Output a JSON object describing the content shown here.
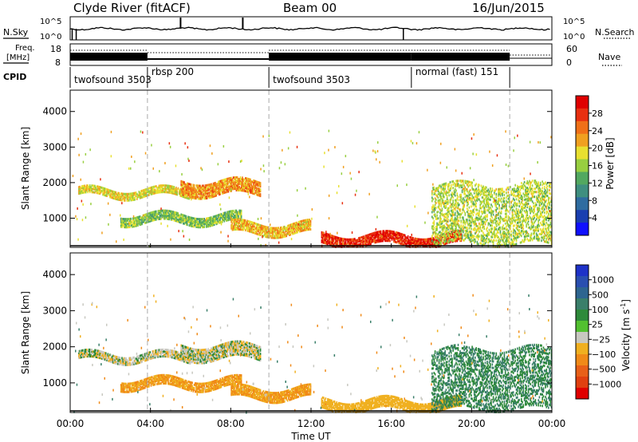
{
  "header": {
    "station": "Clyde River (fitACF)",
    "beam": "Beam 00",
    "date": "16/Jun/2015"
  },
  "status_panel": {
    "nsky_label": "N.Sky",
    "nsearch_label": "N.Search",
    "noise_ticks": [
      "10^5",
      "10^0"
    ],
    "noise_ticks_right": [
      "10^5",
      "10^0"
    ],
    "freq_label_line1": "Freq.",
    "freq_label_line2": "[MHz]",
    "freq_ticks": [
      "18",
      "8"
    ],
    "nave_label": "Nave",
    "nave_ticks": [
      "60",
      "0"
    ],
    "cpid_label": "CPID",
    "cpid_segments": [
      {
        "name": "twofsound 3503",
        "start_hour": 0.0,
        "end_hour": 3.85
      },
      {
        "name": "rbsp 200",
        "start_hour": 3.85,
        "end_hour": 9.9
      },
      {
        "name": "twofsound 3503",
        "start_hour": 9.9,
        "end_hour": 17.0
      },
      {
        "name": "normal (fast) 151",
        "start_hour": 17.0,
        "end_hour": 21.9
      }
    ]
  },
  "chart_data": [
    {
      "type": "heatmap",
      "parameter": "Power",
      "ylabel": "Slant Range [km]",
      "xlabel": "",
      "xlim_hours": [
        0,
        24
      ],
      "ylim": [
        180,
        4600
      ],
      "yticks": [
        1000,
        2000,
        3000,
        4000
      ],
      "colorbar": {
        "label": "Power [dB]",
        "ticks": [
          "28",
          "24",
          "20",
          "16",
          "12",
          "8",
          "4"
        ],
        "range": [
          0,
          30
        ]
      },
      "features": [
        {
          "desc": "band",
          "hours": [
            0.4,
            6.0
          ],
          "range_km": [
            1650,
            1850
          ],
          "value": 18
        },
        {
          "desc": "band",
          "hours": [
            5.5,
            9.5
          ],
          "range_km": [
            1700,
            2100
          ],
          "value": 22
        },
        {
          "desc": "band",
          "hours": [
            2.5,
            8.5
          ],
          "range_km": [
            900,
            1150
          ],
          "value": 14
        },
        {
          "desc": "band",
          "hours": [
            8.0,
            12.0
          ],
          "range_km": [
            600,
            900
          ],
          "value": 20
        },
        {
          "desc": "near-range",
          "hours": [
            12.5,
            19.5
          ],
          "range_km": [
            280,
            560
          ],
          "value": 28
        },
        {
          "desc": "scattered",
          "hours": [
            18.0,
            24.0
          ],
          "range_km": [
            300,
            2000
          ],
          "value": 16
        }
      ]
    },
    {
      "type": "heatmap",
      "parameter": "Velocity",
      "ylabel": "Slant Range [km]",
      "xlabel": "Time UT",
      "xlim_hours": [
        0,
        24
      ],
      "ylim": [
        180,
        4600
      ],
      "yticks": [
        1000,
        2000,
        3000,
        4000
      ],
      "xticks": [
        "00:00",
        "04:00",
        "08:00",
        "12:00",
        "16:00",
        "20:00",
        "00:00"
      ],
      "colorbar": {
        "label": "Velocity [m s",
        "label_superscript": "-1",
        "label_close": "]",
        "ticks": [
          "1000",
          "500",
          "100",
          "25",
          "−25",
          "−100",
          "−500",
          "−1000"
        ]
      },
      "features": [
        {
          "desc": "band",
          "hours": [
            0.4,
            6.0
          ],
          "range_km": [
            1650,
            1850
          ],
          "value": 0
        },
        {
          "desc": "band",
          "hours": [
            5.5,
            9.5
          ],
          "range_km": [
            1700,
            2100
          ],
          "value": 0
        },
        {
          "desc": "band",
          "hours": [
            2.5,
            8.5
          ],
          "range_km": [
            900,
            1150
          ],
          "value": -200
        },
        {
          "desc": "band",
          "hours": [
            8.0,
            12.0
          ],
          "range_km": [
            600,
            900
          ],
          "value": -200
        },
        {
          "desc": "near-range",
          "hours": [
            12.5,
            19.5
          ],
          "range_km": [
            280,
            560
          ],
          "value": -100
        },
        {
          "desc": "scattered",
          "hours": [
            18.0,
            24.0
          ],
          "range_km": [
            300,
            2000
          ],
          "value": 200
        }
      ]
    }
  ]
}
